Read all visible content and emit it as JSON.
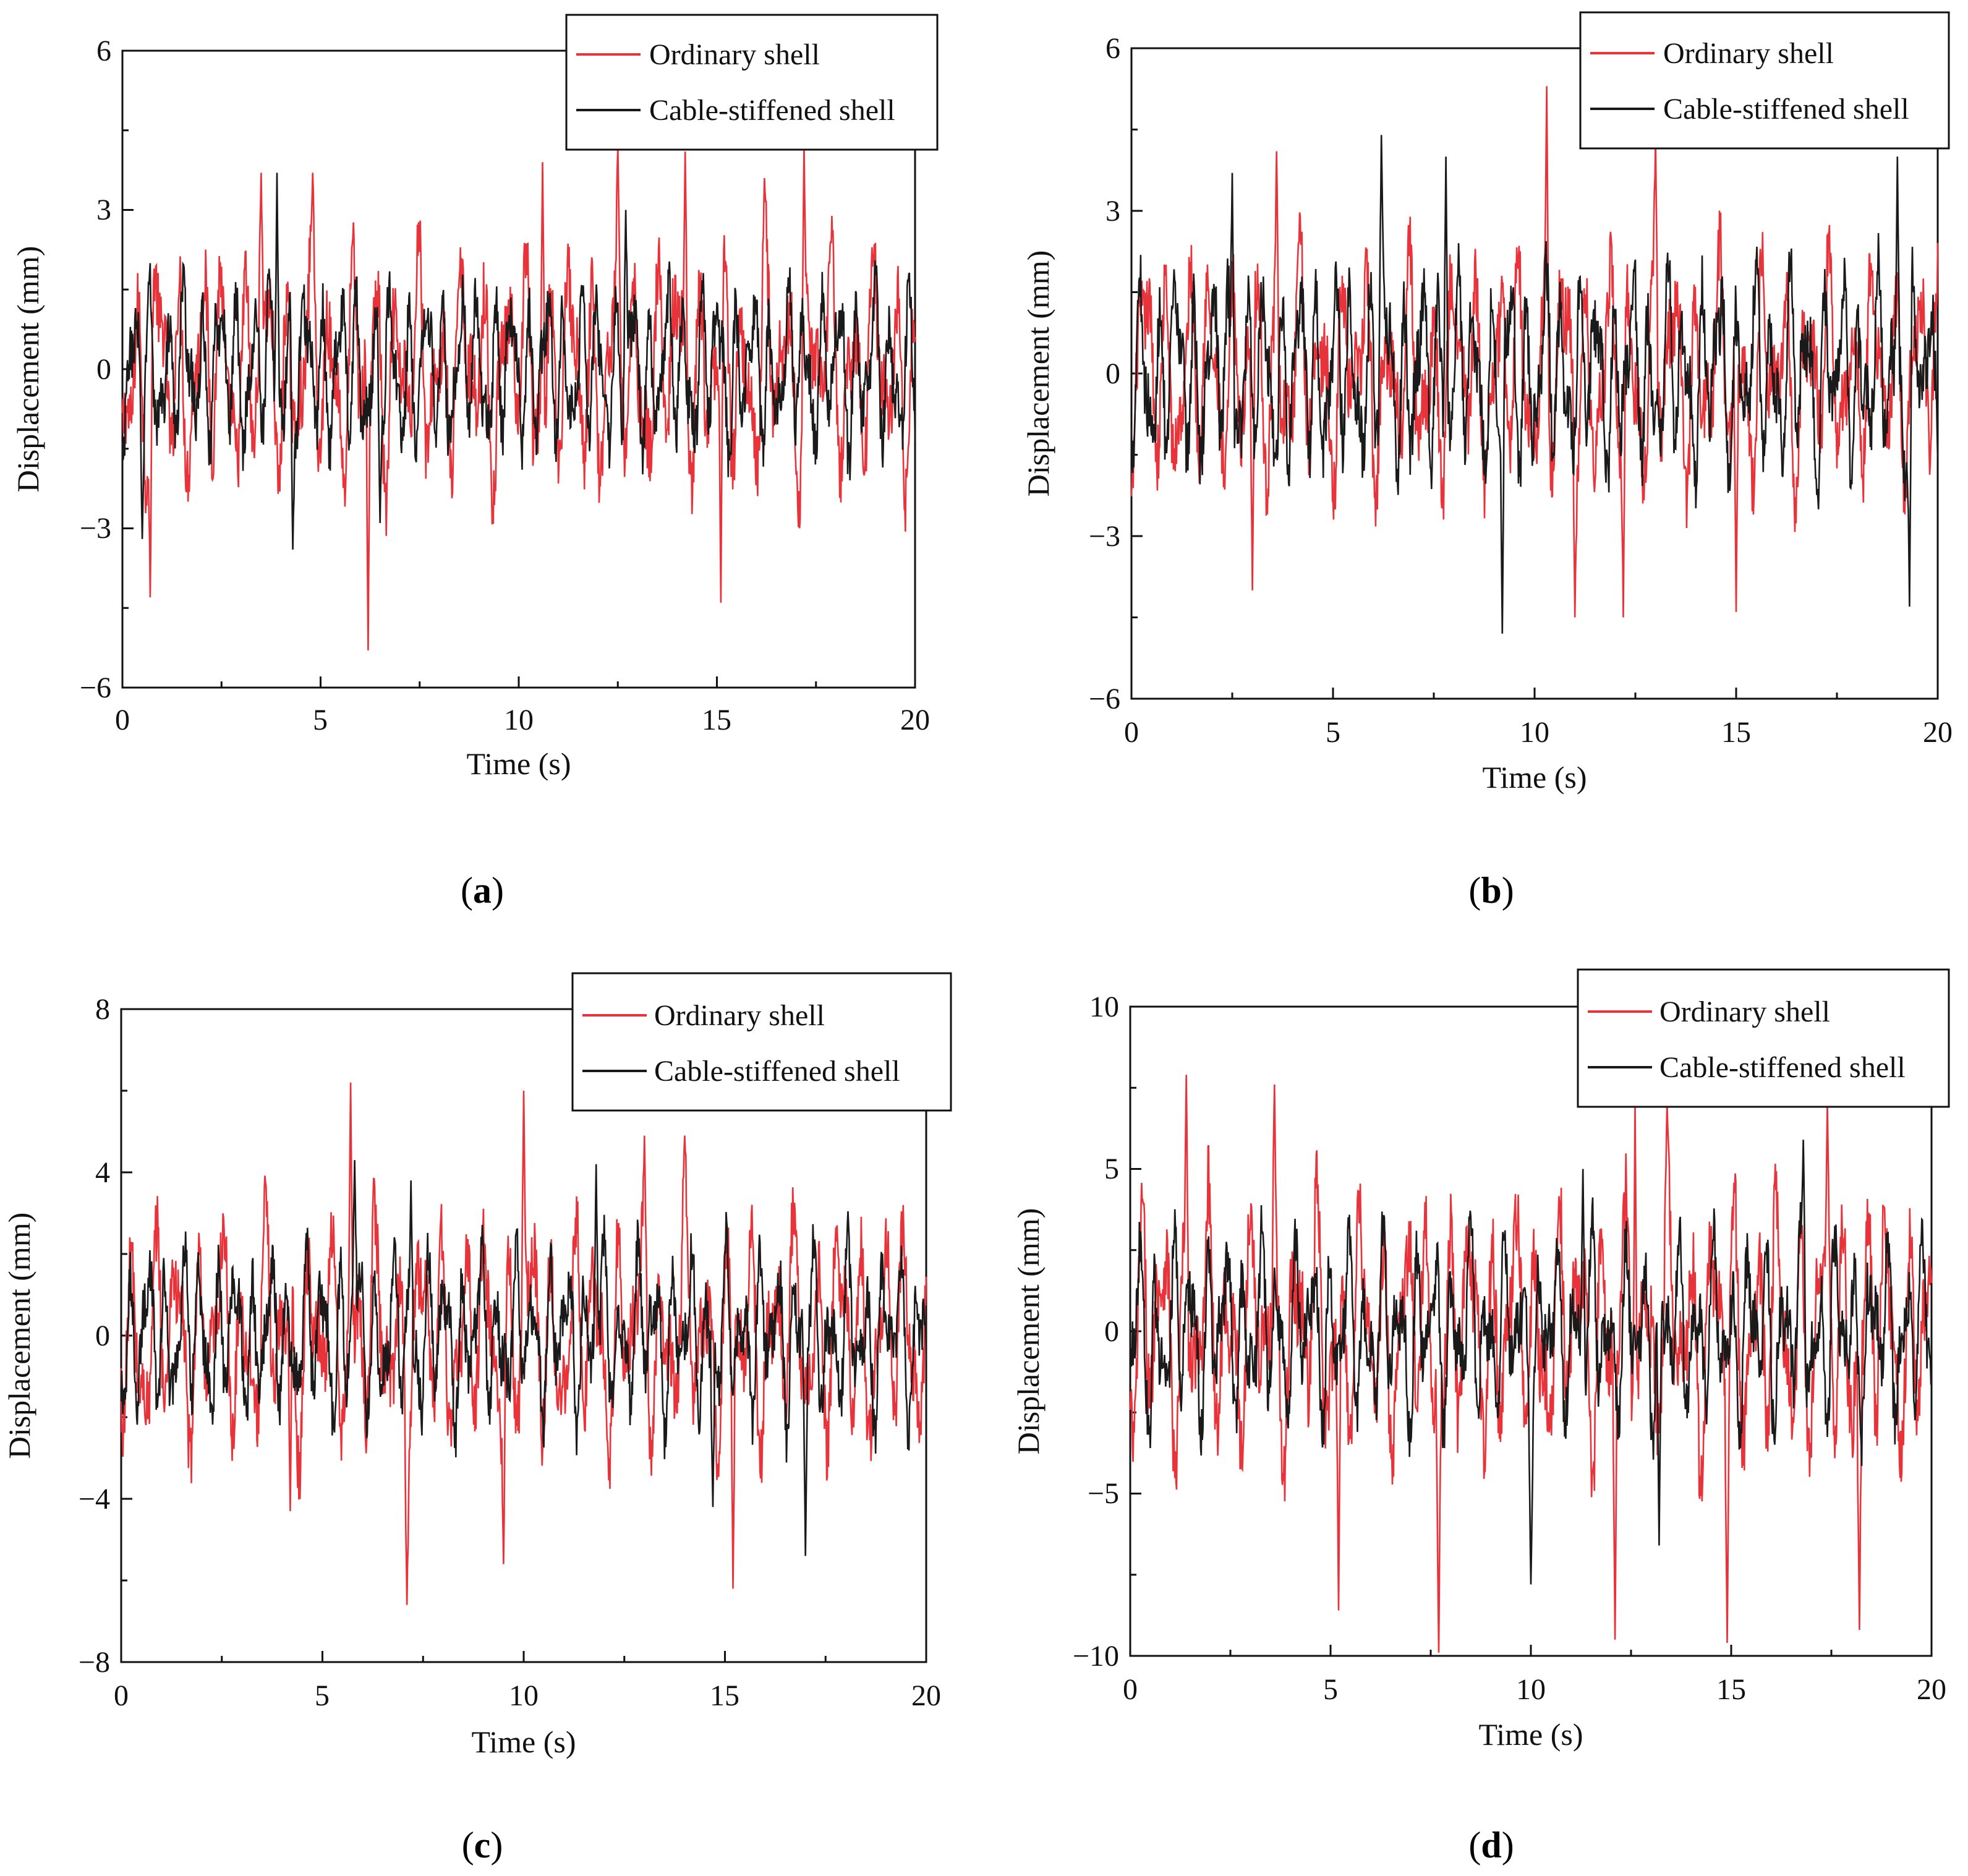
{
  "figure": {
    "legend_labels": [
      "Ordinary shell",
      "Cable-stiffened shell"
    ],
    "colors": {
      "ordinary": "#e8333a",
      "cable": "#1a1a1a",
      "axis": "#111111"
    }
  },
  "chart_data": [
    {
      "id": "a",
      "type": "line",
      "caption_letter": "a",
      "xlabel": "Time (s)",
      "ylabel": "Displacement (mm)",
      "xlim": [
        0,
        20
      ],
      "ylim": [
        -6,
        6
      ],
      "xticks": [
        0,
        5,
        10,
        15,
        20
      ],
      "yticks": [
        -6,
        -3,
        0,
        3,
        6
      ],
      "ytick_labels": [
        "−6",
        "−3",
        "0",
        "3",
        "6"
      ],
      "legend_position": "top-right",
      "series": [
        {
          "name": "Ordinary shell",
          "color": "#e8333a",
          "amplitude": 2.3,
          "peaks": [
            [
              0.7,
              -4.3
            ],
            [
              3.5,
              3.7
            ],
            [
              4.8,
              3.7
            ],
            [
              6.2,
              -5.3
            ],
            [
              10.6,
              3.9
            ],
            [
              12.5,
              4.2
            ],
            [
              14.2,
              4.1
            ],
            [
              15.1,
              -4.4
            ],
            [
              17.2,
              4.2
            ],
            [
              16.2,
              3.6
            ]
          ]
        },
        {
          "name": "Cable-stiffened shell",
          "color": "#1a1a1a",
          "amplitude": 1.7,
          "peaks": [
            [
              3.9,
              3.7
            ],
            [
              4.3,
              -3.4
            ],
            [
              12.7,
              3.0
            ],
            [
              0.5,
              -3.2
            ],
            [
              6.5,
              -2.9
            ]
          ]
        }
      ]
    },
    {
      "id": "b",
      "type": "line",
      "caption_letter": "b",
      "xlabel": "Time (s)",
      "ylabel": "Displacement (mm)",
      "xlim": [
        0,
        20
      ],
      "ylim": [
        -6,
        6
      ],
      "xticks": [
        0,
        5,
        10,
        15,
        20
      ],
      "yticks": [
        -6,
        -3,
        0,
        3,
        6
      ],
      "ytick_labels": [
        "−6",
        "−3",
        "0",
        "3",
        "6"
      ],
      "legend_position": "top-right",
      "series": [
        {
          "name": "Ordinary shell",
          "color": "#e8333a",
          "amplitude": 2.2,
          "peaks": [
            [
              10.3,
              5.3
            ],
            [
              3.0,
              -4.0
            ],
            [
              3.6,
              4.1
            ],
            [
              12.2,
              -4.5
            ],
            [
              13.0,
              4.4
            ],
            [
              15.0,
              -4.4
            ],
            [
              11.0,
              -4.5
            ]
          ]
        },
        {
          "name": "Cable-stiffened shell",
          "color": "#1a1a1a",
          "amplitude": 2.0,
          "peaks": [
            [
              9.2,
              -4.8
            ],
            [
              6.2,
              4.4
            ],
            [
              19.3,
              -4.3
            ],
            [
              19.0,
              4.0
            ],
            [
              2.5,
              3.7
            ],
            [
              7.8,
              4.0
            ]
          ]
        }
      ]
    },
    {
      "id": "c",
      "type": "line",
      "caption_letter": "c",
      "xlabel": "Time (s)",
      "ylabel": "Displacement (mm)",
      "xlim": [
        0,
        20
      ],
      "ylim": [
        -8,
        8
      ],
      "xticks": [
        0,
        5,
        10,
        15,
        20
      ],
      "yticks": [
        -8,
        -4,
        0,
        4,
        8
      ],
      "ytick_labels": [
        "−8",
        "−4",
        "0",
        "4",
        "8"
      ],
      "legend_position": "top-right",
      "series": [
        {
          "name": "Ordinary shell",
          "color": "#e8333a",
          "amplitude": 2.9,
          "peaks": [
            [
              5.7,
              6.2
            ],
            [
              10.0,
              6.0
            ],
            [
              7.1,
              -6.6
            ],
            [
              15.2,
              -6.2
            ],
            [
              9.5,
              -5.6
            ],
            [
              13.0,
              4.9
            ],
            [
              14.0,
              4.9
            ],
            [
              4.2,
              -4.3
            ]
          ]
        },
        {
          "name": "Cable-stiffened shell",
          "color": "#1a1a1a",
          "amplitude": 2.2,
          "peaks": [
            [
              5.8,
              4.3
            ],
            [
              17.0,
              -5.4
            ],
            [
              11.8,
              4.2
            ],
            [
              7.2,
              3.8
            ],
            [
              14.7,
              -4.2
            ]
          ]
        }
      ]
    },
    {
      "id": "d",
      "type": "line",
      "caption_letter": "d",
      "xlabel": "Time (s)",
      "ylabel": "Displacement (mm)",
      "xlim": [
        0,
        20
      ],
      "ylim": [
        -10,
        10
      ],
      "xticks": [
        0,
        5,
        10,
        15,
        20
      ],
      "yticks": [
        -10,
        -5,
        0,
        5,
        10
      ],
      "ytick_labels": [
        "−10",
        "−5",
        "0",
        "5",
        "10"
      ],
      "legend_position": "top-right",
      "series": [
        {
          "name": "Ordinary shell",
          "color": "#e8333a",
          "amplitude": 4.2,
          "peaks": [
            [
              1.4,
              7.9
            ],
            [
              3.6,
              7.6
            ],
            [
              7.7,
              -9.9
            ],
            [
              12.1,
              -9.5
            ],
            [
              14.9,
              -9.6
            ],
            [
              18.2,
              -9.2
            ],
            [
              12.6,
              7.0
            ],
            [
              13.4,
              7.0
            ],
            [
              17.4,
              7.0
            ],
            [
              5.2,
              -8.6
            ]
          ]
        },
        {
          "name": "Cable-stiffened shell",
          "color": "#1a1a1a",
          "amplitude": 3.0,
          "peaks": [
            [
              10.0,
              -7.8
            ],
            [
              16.8,
              5.9
            ],
            [
              0.5,
              -3.6
            ],
            [
              11.3,
              5.0
            ],
            [
              13.2,
              -6.6
            ]
          ]
        }
      ]
    }
  ]
}
